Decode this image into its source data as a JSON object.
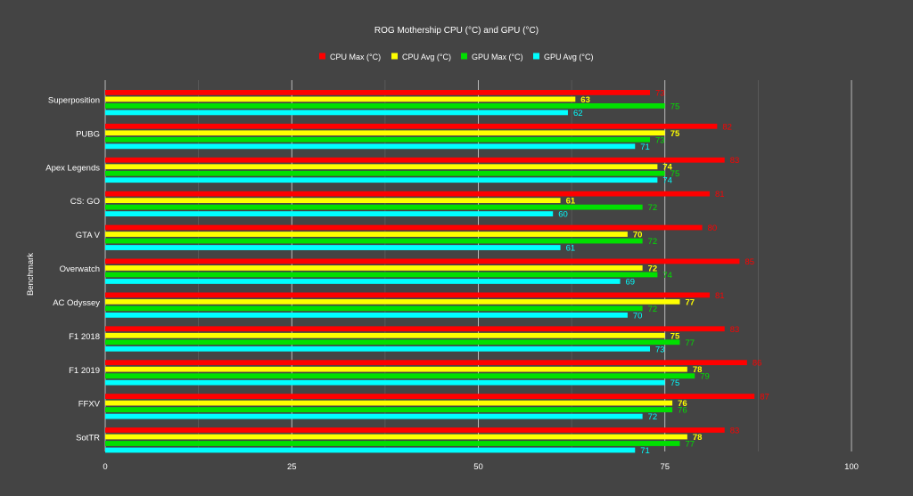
{
  "chart_data": {
    "type": "bar",
    "orientation": "horizontal",
    "title": "ROG Mothership CPU (°C) and GPU (°C)",
    "ylabel": "Benchmark",
    "xlabel": "",
    "xlim": [
      0,
      100
    ],
    "xticks": [
      "0",
      "25",
      "50",
      "75",
      "100"
    ],
    "grid": true,
    "legend_position": "top",
    "categories": [
      "Superposition",
      "PUBG",
      "Apex Legends",
      "CS: GO",
      "GTA V",
      "Overwatch",
      "AC Odyssey",
      "F1 2018",
      "F1 2019",
      "FFXV",
      "SotTR"
    ],
    "series": [
      {
        "name": "CPU Max (°C)",
        "color": "#ff0000",
        "values": [
          73,
          82,
          83,
          81,
          80,
          85,
          81,
          83,
          86,
          87,
          83
        ]
      },
      {
        "name": "CPU Avg (°C)",
        "color": "#ffff00",
        "values": [
          63,
          75,
          74,
          61,
          70,
          72,
          77,
          75,
          78,
          76,
          78
        ]
      },
      {
        "name": "GPU Max (°C)",
        "color": "#00e000",
        "values": [
          75,
          73,
          75,
          72,
          72,
          74,
          72,
          77,
          79,
          76,
          77
        ]
      },
      {
        "name": "GPU Avg (°C)",
        "color": "#00ffff",
        "values": [
          62,
          71,
          74,
          60,
          61,
          69,
          70,
          73,
          75,
          72,
          71
        ]
      }
    ]
  }
}
